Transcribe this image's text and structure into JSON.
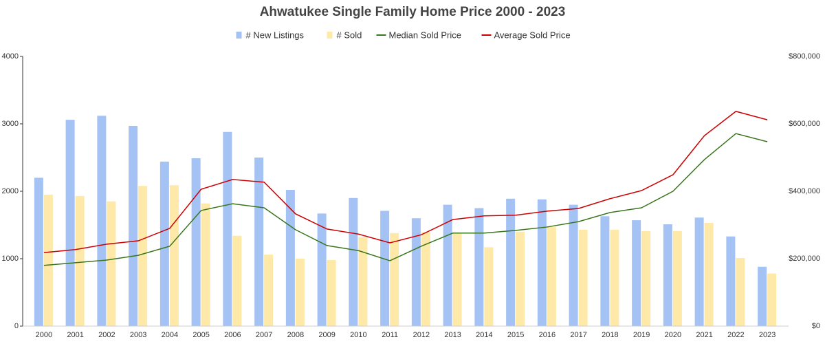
{
  "chart_data": {
    "type": "bar-line",
    "title": "Ahwatukee Single Family Home Price 2000 - 2023",
    "categories": [
      "2000",
      "2001",
      "2002",
      "2003",
      "2004",
      "2005",
      "2006",
      "2007",
      "2008",
      "2009",
      "2010",
      "2011",
      "2012",
      "2013",
      "2014",
      "2015",
      "2016",
      "2017",
      "2018",
      "2019",
      "2020",
      "2021",
      "2022",
      "2023"
    ],
    "series": [
      {
        "name": "# New Listings",
        "type": "bar",
        "color": "#a4c2f4",
        "axis": "y",
        "values": [
          2200,
          3060,
          3120,
          2970,
          2440,
          2490,
          2880,
          2500,
          2020,
          1670,
          1900,
          1710,
          1600,
          1800,
          1750,
          1890,
          1880,
          1800,
          1630,
          1570,
          1510,
          1610,
          1330,
          880
        ]
      },
      {
        "name": "# Sold",
        "type": "bar",
        "color": "#ffe9a8",
        "axis": "y",
        "values": [
          1950,
          1930,
          1850,
          2080,
          2090,
          1820,
          1340,
          1060,
          1000,
          980,
          1320,
          1380,
          1390,
          1380,
          1170,
          1400,
          1470,
          1430,
          1430,
          1410,
          1410,
          1530,
          1010,
          780
        ]
      },
      {
        "name": "Median Sold Price",
        "type": "line",
        "color": "#38761d",
        "axis": "y2",
        "values": [
          180000,
          188000,
          196000,
          210000,
          237000,
          343000,
          363000,
          351000,
          286000,
          239000,
          224000,
          194000,
          237000,
          276000,
          276000,
          284000,
          294000,
          310000,
          337000,
          351000,
          400000,
          494000,
          571000,
          547000
        ]
      },
      {
        "name": "Average Sold Price",
        "type": "line",
        "color": "#cc0000",
        "axis": "y2",
        "values": [
          218000,
          227000,
          243000,
          253000,
          290000,
          406000,
          435000,
          427000,
          333000,
          288000,
          273000,
          247000,
          271000,
          316000,
          327000,
          329000,
          341000,
          349000,
          378000,
          402000,
          449000,
          565000,
          637000,
          612000
        ]
      }
    ],
    "ylim": [
      0,
      4000
    ],
    "yticks": [
      0,
      1000,
      2000,
      3000,
      4000
    ],
    "y2lim": [
      0,
      800000
    ],
    "y2ticks": [
      {
        "value": 0,
        "label": "$0"
      },
      {
        "value": 200000,
        "label": "$200,000"
      },
      {
        "value": 400000,
        "label": "$400,000"
      },
      {
        "value": 600000,
        "label": "$600,000"
      },
      {
        "value": 800000,
        "label": "$800,000"
      }
    ],
    "legend": "top"
  }
}
